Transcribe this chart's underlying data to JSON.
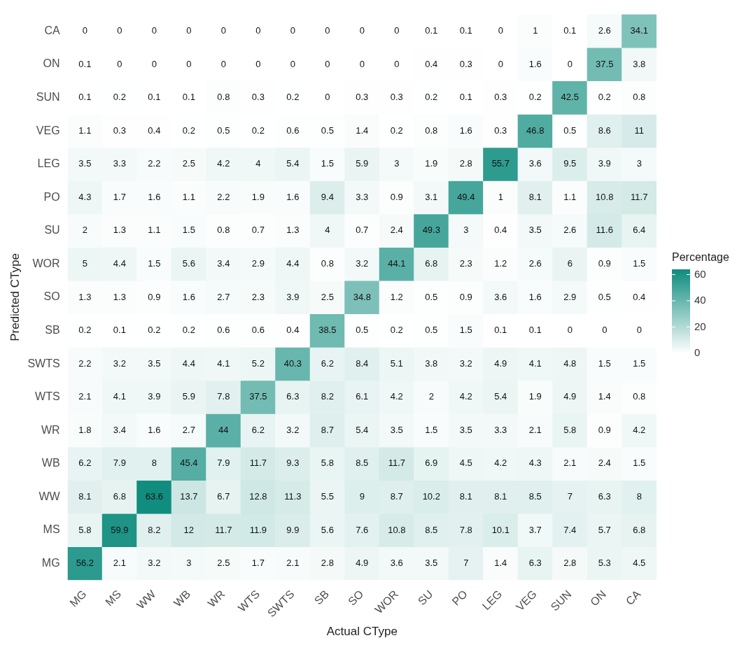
{
  "chart_data": {
    "type": "heatmap",
    "xlabel": "Actual CType",
    "ylabel": "Predicted CType",
    "clabel": "Percentage",
    "data_labels": true,
    "categories": [
      "MG",
      "MS",
      "WW",
      "WB",
      "WR",
      "WTS",
      "SWTS",
      "SB",
      "SO",
      "WOR",
      "SU",
      "PO",
      "LEG",
      "VEG",
      "SUN",
      "ON",
      "CA"
    ],
    "y_categories": [
      "CA",
      "ON",
      "SUN",
      "VEG",
      "LEG",
      "PO",
      "SU",
      "WOR",
      "SO",
      "SB",
      "SWTS",
      "WTS",
      "WR",
      "WB",
      "WW",
      "MS",
      "MG"
    ],
    "clim": [
      0,
      64
    ],
    "cticks": [
      0,
      20,
      40,
      60
    ],
    "cells": [
      [
        0,
        0,
        0,
        0,
        0,
        0,
        0,
        0,
        0,
        0,
        0.1,
        0.1,
        0,
        1,
        0.1,
        2.6,
        34.1
      ],
      [
        0.1,
        0,
        0,
        0,
        0,
        0,
        0,
        0,
        0,
        0,
        0.4,
        0.3,
        0,
        1.6,
        0,
        37.5,
        3.8
      ],
      [
        0.1,
        0.2,
        0.1,
        0.1,
        0.8,
        0.3,
        0.2,
        0,
        0.3,
        0.3,
        0.2,
        0.1,
        0.3,
        0.2,
        42.5,
        0.2,
        0.8
      ],
      [
        1.1,
        0.3,
        0.4,
        0.2,
        0.5,
        0.2,
        0.6,
        0.5,
        1.4,
        0.2,
        0.8,
        1.6,
        0.3,
        46.8,
        0.5,
        8.6,
        11
      ],
      [
        3.5,
        3.3,
        2.2,
        2.5,
        4.2,
        4,
        5.4,
        1.5,
        5.9,
        3,
        1.9,
        2.8,
        55.7,
        3.6,
        9.5,
        3.9,
        3
      ],
      [
        4.3,
        1.7,
        1.6,
        1.1,
        2.2,
        1.9,
        1.6,
        9.4,
        3.3,
        0.9,
        3.1,
        49.4,
        1,
        8.1,
        1.1,
        10.8,
        11.7
      ],
      [
        2,
        1.3,
        1.1,
        1.5,
        0.8,
        0.7,
        1.3,
        4,
        0.7,
        2.4,
        49.3,
        3,
        0.4,
        3.5,
        2.6,
        11.6,
        6.4
      ],
      [
        5,
        4.4,
        1.5,
        5.6,
        3.4,
        2.9,
        4.4,
        0.8,
        3.2,
        44.1,
        6.8,
        2.3,
        1.2,
        2.6,
        6,
        0.9,
        1.5
      ],
      [
        1.3,
        1.3,
        0.9,
        1.6,
        2.7,
        2.3,
        3.9,
        2.5,
        34.8,
        1.2,
        0.5,
        0.9,
        3.6,
        1.6,
        2.9,
        0.5,
        0.4
      ],
      [
        0.2,
        0.1,
        0.2,
        0.2,
        0.6,
        0.6,
        0.4,
        38.5,
        0.5,
        0.2,
        0.5,
        1.5,
        0.1,
        0.1,
        0,
        0,
        0
      ],
      [
        2.2,
        3.2,
        3.5,
        4.4,
        4.1,
        5.2,
        40.3,
        6.2,
        8.4,
        5.1,
        3.8,
        3.2,
        4.9,
        4.1,
        4.8,
        1.5,
        1.5
      ],
      [
        2.1,
        4.1,
        3.9,
        5.9,
        7.8,
        37.5,
        6.3,
        8.2,
        6.1,
        4.2,
        2,
        4.2,
        5.4,
        1.9,
        4.9,
        1.4,
        0.8
      ],
      [
        1.8,
        3.4,
        1.6,
        2.7,
        44,
        6.2,
        3.2,
        8.7,
        5.4,
        3.5,
        1.5,
        3.5,
        3.3,
        2.1,
        5.8,
        0.9,
        4.2
      ],
      [
        6.2,
        7.9,
        8,
        45.4,
        7.9,
        11.7,
        9.3,
        5.8,
        8.5,
        11.7,
        6.9,
        4.5,
        4.2,
        4.3,
        2.1,
        2.4,
        1.5
      ],
      [
        8.1,
        6.8,
        63.6,
        13.7,
        6.7,
        12.8,
        11.3,
        5.5,
        9,
        8.7,
        10.2,
        8.1,
        8.1,
        8.5,
        7,
        6.3,
        8
      ],
      [
        5.8,
        59.9,
        8.2,
        12,
        11.7,
        11.9,
        9.9,
        5.6,
        7.6,
        10.8,
        8.5,
        7.8,
        10.1,
        3.7,
        7.4,
        5.7,
        6.8
      ],
      [
        56.2,
        2.1,
        3.2,
        3,
        2.5,
        1.7,
        2.1,
        2.8,
        4.9,
        3.6,
        3.5,
        7,
        1.4,
        6.3,
        2.8,
        5.3,
        4.5
      ]
    ]
  }
}
